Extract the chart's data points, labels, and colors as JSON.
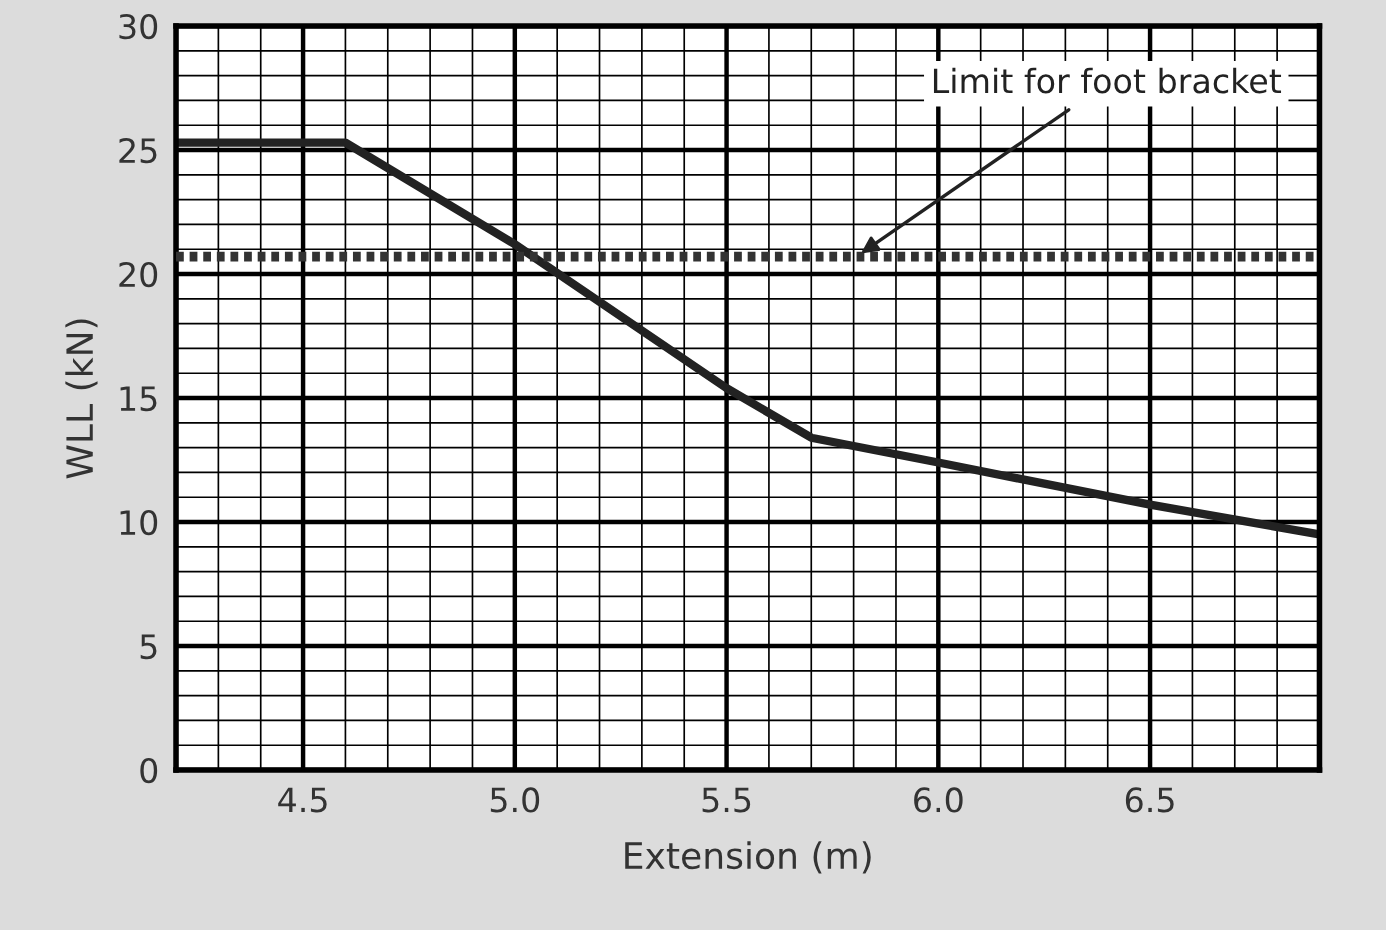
{
  "chart_data": {
    "type": "line",
    "xlabel": "Extension (m)",
    "ylabel": "WLL (kN)",
    "series": [
      {
        "color": "#222222",
        "x": [
          4.2,
          4.6,
          5.0,
          5.5,
          5.7,
          6.0,
          6.5,
          6.9
        ],
        "values": [
          25.3,
          25.3,
          21.2,
          15.4,
          13.4,
          12.4,
          10.7,
          9.5
        ]
      }
    ],
    "xlim": [
      4.2,
      6.9
    ],
    "ylim": [
      0,
      30
    ],
    "xticks": [
      {
        "value": 4.5,
        "label": "4.5"
      },
      {
        "value": 5.0,
        "label": "5.0"
      },
      {
        "value": 5.5,
        "label": "5.5"
      },
      {
        "value": 6.0,
        "label": "6.0"
      },
      {
        "value": 6.5,
        "label": "6.5"
      }
    ],
    "yticks": [
      0,
      5,
      10,
      15,
      20,
      25,
      30
    ],
    "grid": true,
    "line_style": "solid",
    "marker": "none",
    "ref_lines": [
      {
        "axis": "y",
        "value": 20.7,
        "label": "Limit for foot bracket",
        "color": "#333333",
        "line_style": "dotted"
      }
    ]
  }
}
